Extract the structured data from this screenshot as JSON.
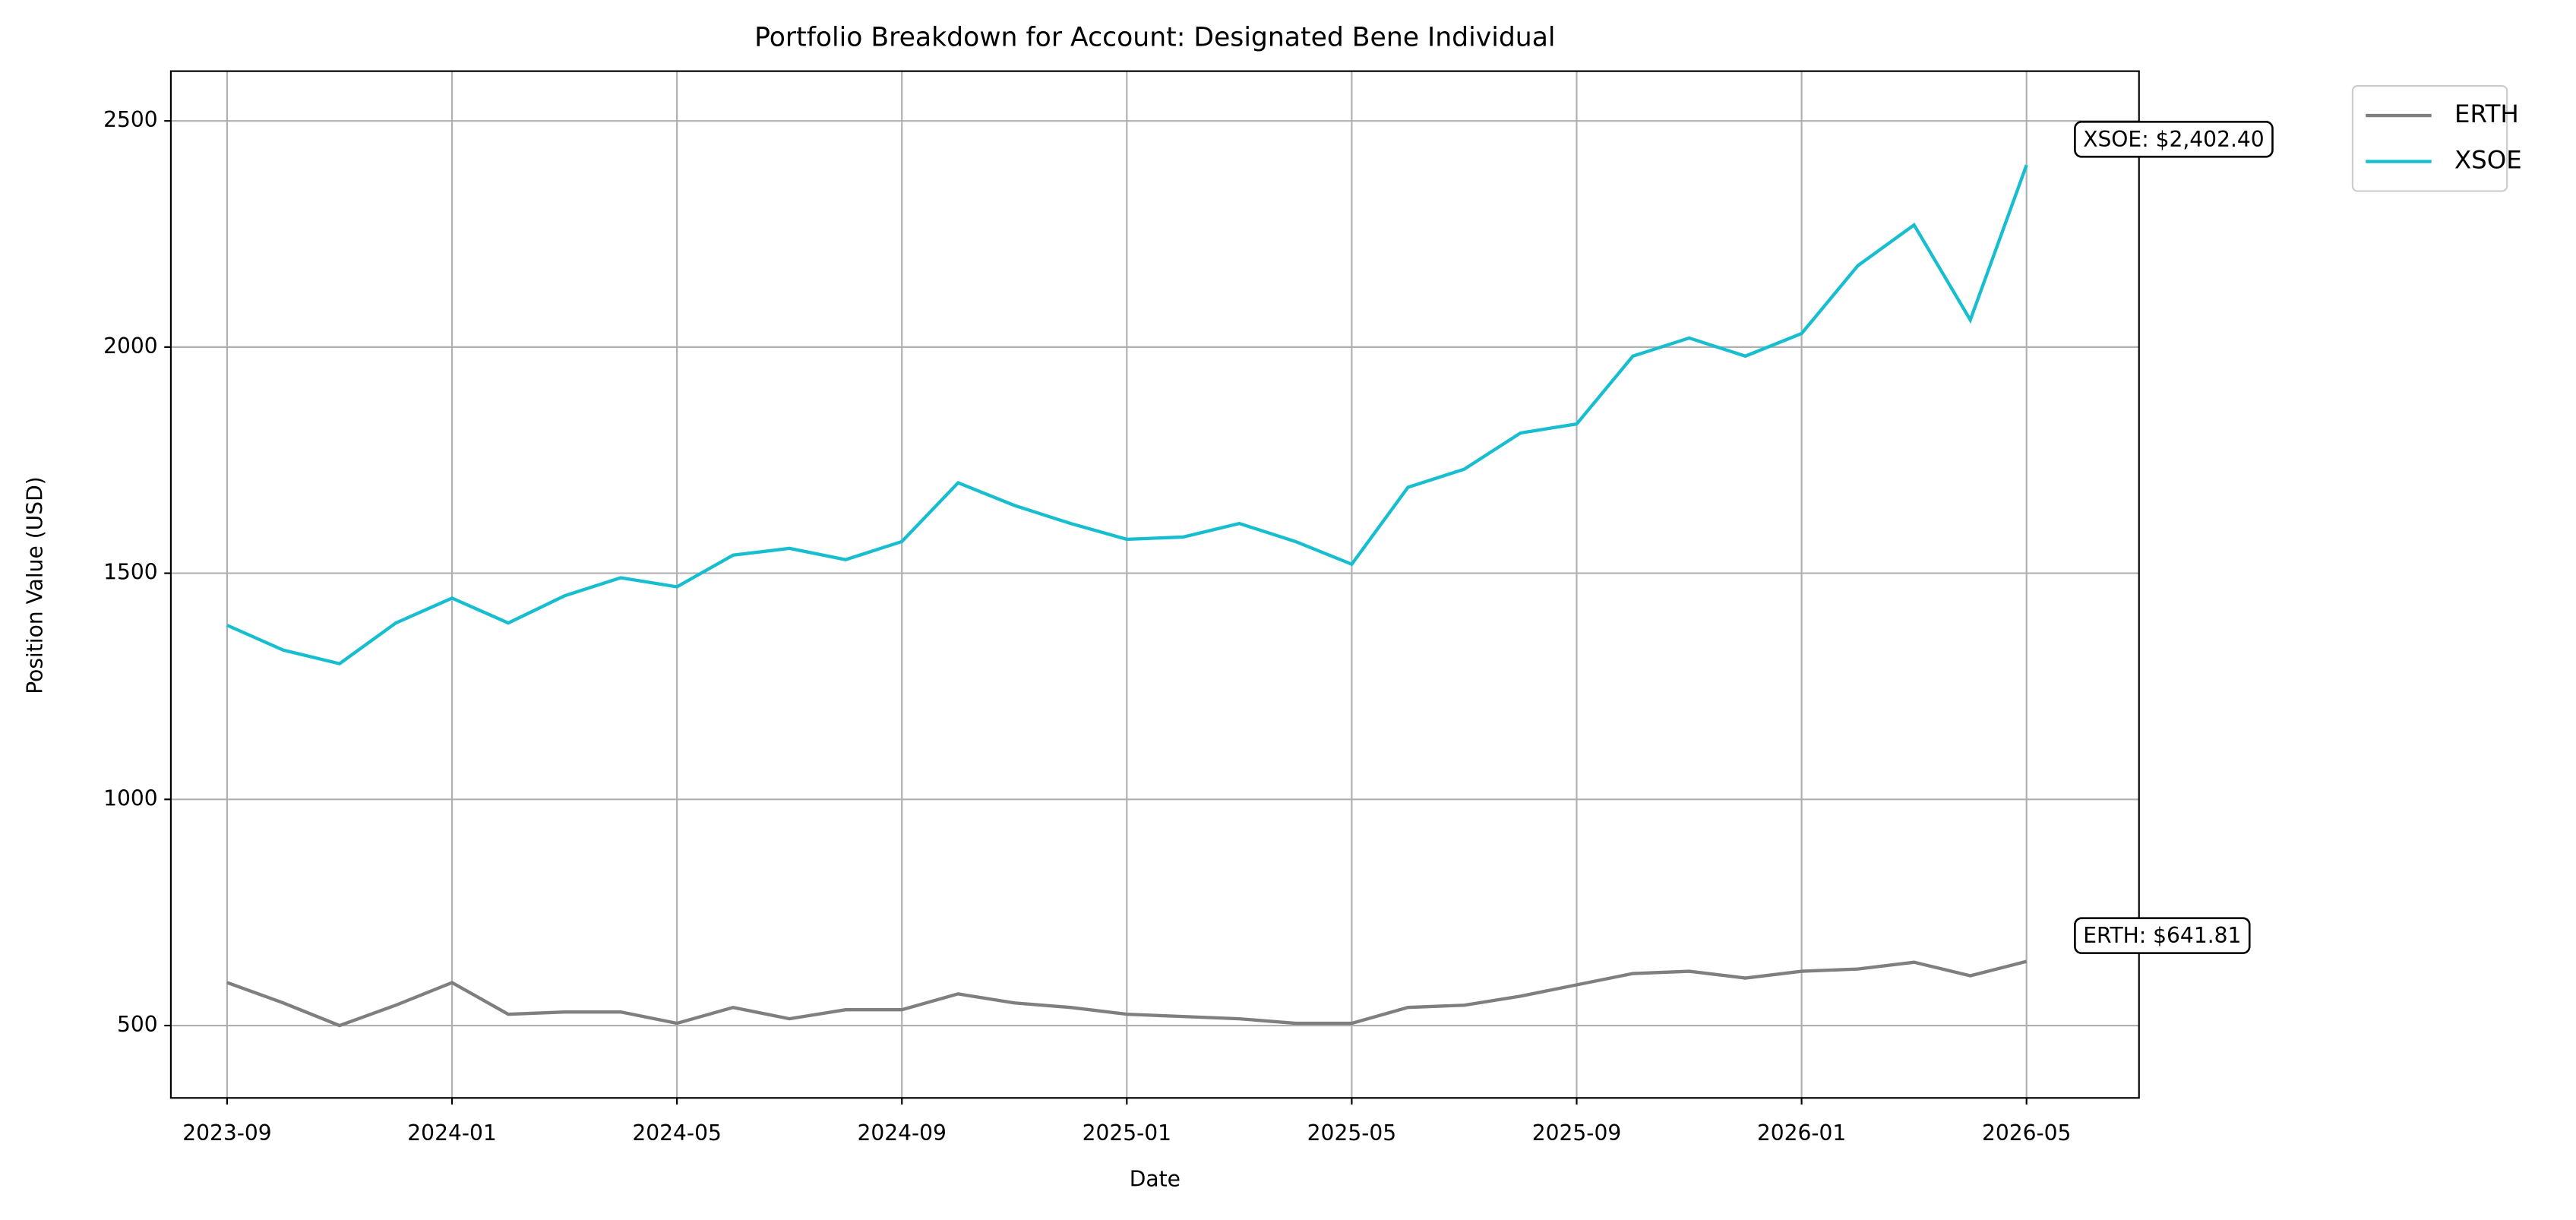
{
  "chart_data": {
    "type": "line",
    "title": "Portfolio Breakdown for Account: Designated Bene Individual",
    "x_label": "Date",
    "y_label": "Position Value (USD)",
    "x": [
      "2023-09",
      "2023-10",
      "2023-11",
      "2023-12",
      "2024-01",
      "2024-02",
      "2024-03",
      "2024-04",
      "2024-05",
      "2024-06",
      "2024-07",
      "2024-08",
      "2024-09",
      "2024-10",
      "2024-11",
      "2024-12",
      "2025-01",
      "2025-02",
      "2025-03",
      "2025-04",
      "2025-05",
      "2025-06",
      "2025-07",
      "2025-08",
      "2025-09",
      "2025-10",
      "2025-11",
      "2025-12",
      "2026-01",
      "2026-02",
      "2026-03",
      "2026-04",
      "2026-05"
    ],
    "series": [
      {
        "name": "ERTH",
        "color": "#7f7f7f",
        "values": [
          595,
          550,
          500,
          545,
          595,
          525,
          530,
          530,
          505,
          540,
          515,
          535,
          535,
          570,
          550,
          540,
          525,
          520,
          515,
          505,
          505,
          540,
          545,
          565,
          590,
          615,
          620,
          605,
          620,
          625,
          640,
          610,
          641.81
        ]
      },
      {
        "name": "XSOE",
        "color": "#17becf",
        "values": [
          1385,
          1330,
          1300,
          1390,
          1445,
          1390,
          1450,
          1490,
          1470,
          1540,
          1555,
          1530,
          1570,
          1700,
          1650,
          1610,
          1575,
          1580,
          1610,
          1570,
          1520,
          1690,
          1730,
          1810,
          1830,
          1980,
          2020,
          1980,
          2030,
          2180,
          2270,
          2060,
          2402.4
        ]
      }
    ],
    "annotations": [
      "ERTH: $641.81",
      "XSOE: $2,402.40"
    ],
    "xlim": [
      "2023-08",
      "2026-07"
    ],
    "xticks": [
      "2023-09",
      "2024-01",
      "2024-05",
      "2024-09",
      "2025-01",
      "2025-05",
      "2025-09",
      "2026-01",
      "2026-05"
    ],
    "ylim": [
      340,
      2610
    ],
    "yticks": [
      500,
      1000,
      1500,
      2000,
      2500
    ],
    "grid": true,
    "legend": "outside-upper-right"
  }
}
